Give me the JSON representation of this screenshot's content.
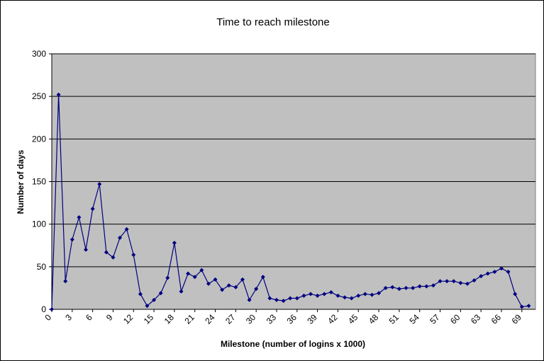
{
  "chart_data": {
    "type": "line",
    "title": "Time to reach milestone",
    "xlabel": "Milestone (number of logins x 1000)",
    "ylabel": "Number of days",
    "ylim": [
      0,
      300
    ],
    "yticks": [
      0,
      50,
      100,
      150,
      200,
      250,
      300
    ],
    "xlim": [
      0,
      71
    ],
    "xticks": [
      0,
      3,
      6,
      9,
      12,
      15,
      18,
      21,
      24,
      27,
      30,
      33,
      36,
      39,
      42,
      45,
      48,
      51,
      54,
      57,
      60,
      63,
      66,
      69
    ],
    "grid": "horizontal",
    "plot_background": "#C0C0C0",
    "series": [
      {
        "color": "#000080",
        "marker": "diamond",
        "x": [
          0,
          1,
          2,
          3,
          4,
          5,
          6,
          7,
          8,
          9,
          10,
          11,
          12,
          13,
          14,
          15,
          16,
          17,
          18,
          19,
          20,
          21,
          22,
          23,
          24,
          25,
          26,
          27,
          28,
          29,
          30,
          31,
          32,
          33,
          34,
          35,
          36,
          37,
          38,
          39,
          40,
          41,
          42,
          43,
          44,
          45,
          46,
          47,
          48,
          49,
          50,
          51,
          52,
          53,
          54,
          55,
          56,
          57,
          58,
          59,
          60,
          61,
          62,
          63,
          64,
          65,
          66,
          67,
          68,
          69,
          70
        ],
        "values": [
          0,
          252,
          33,
          82,
          108,
          70,
          118,
          147,
          67,
          61,
          84,
          94,
          64,
          18,
          4,
          11,
          19,
          37,
          78,
          21,
          42,
          38,
          46,
          30,
          35,
          23,
          28,
          26,
          35,
          11,
          24,
          38,
          13,
          11,
          10,
          13,
          13,
          16,
          18,
          16,
          18,
          20,
          16,
          14,
          13,
          16,
          18,
          17,
          19,
          25,
          26,
          24,
          25,
          25,
          27,
          27,
          28,
          33,
          33,
          33,
          31,
          30,
          34,
          39,
          42,
          44,
          48,
          44,
          18,
          3,
          4
        ]
      }
    ]
  }
}
